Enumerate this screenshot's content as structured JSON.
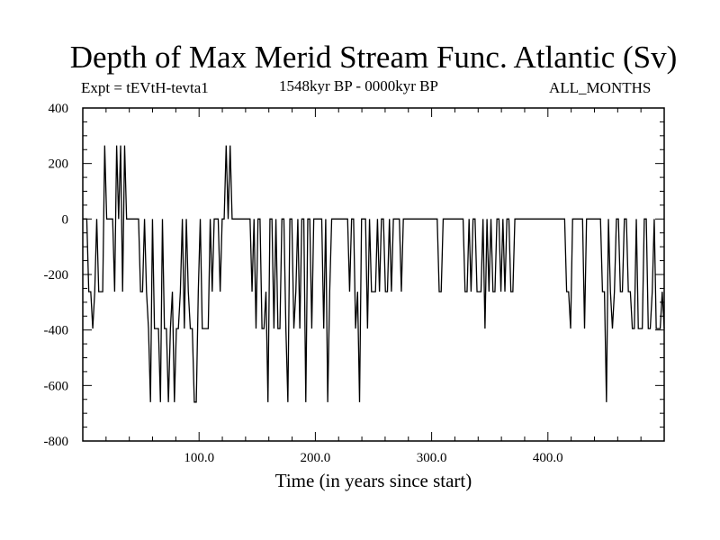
{
  "title": "Depth of Max Merid Stream Func. Atlantic (Sv)",
  "expt_label": "Expt = tEVtH-tevta1",
  "period_label": "1548kyr BP - 0000kyr BP",
  "months_label": "ALL_MONTHS",
  "chart_data": {
    "type": "line",
    "title": "Depth of Max Merid Stream Func. Atlantic (Sv)",
    "xlabel": "Time (in years since start)",
    "ylabel": "",
    "xlim": [
      0,
      500
    ],
    "ylim": [
      -800,
      400
    ],
    "yticks": [
      400,
      200,
      0,
      -200,
      -400,
      -600,
      -800
    ],
    "ytick_labels": [
      "400",
      "200",
      "0",
      "-200",
      "-400",
      "-600",
      "-800"
    ],
    "xticks": [
      100,
      200,
      300,
      400
    ],
    "xtick_labels": [
      "100.0",
      "200.0",
      "300.0",
      "400.0"
    ],
    "grid": false,
    "series": [
      {
        "values": [
          0,
          0,
          0,
          -262,
          -262,
          -395,
          -262,
          0,
          -262,
          -262,
          -262,
          265,
          0,
          0,
          0,
          0,
          -262,
          265,
          0,
          265,
          -262,
          265,
          0,
          0,
          0,
          0,
          0,
          0,
          0,
          -262,
          -262,
          0,
          -262,
          -395,
          -660,
          0,
          -395,
          -395,
          -395,
          -660,
          0,
          -395,
          -395,
          -660,
          -395,
          -262,
          -660,
          -395,
          -395,
          -262,
          0,
          -395,
          0,
          -262,
          -395,
          -395,
          -660,
          -660,
          -262,
          0,
          -395,
          -395,
          -395,
          -395,
          0,
          -262,
          0,
          0,
          0,
          -262,
          0,
          0,
          265,
          0,
          265,
          0,
          0,
          0,
          0,
          0,
          0,
          0,
          0,
          0,
          0,
          -262,
          0,
          -395,
          0,
          0,
          -395,
          -395,
          -262,
          -660,
          0,
          0,
          -395,
          0,
          -395,
          -395,
          0,
          0,
          -395,
          -660,
          0,
          0,
          -395,
          -262,
          0,
          -395,
          0,
          0,
          -660,
          0,
          0,
          -395,
          0,
          0,
          0,
          0,
          0,
          -395,
          0,
          -660,
          -262,
          0,
          0,
          0,
          0,
          0,
          0,
          0,
          0,
          0,
          -262,
          0,
          0,
          -395,
          -262,
          -660,
          0,
          0,
          0,
          -395,
          0,
          -262,
          -262,
          -262,
          0,
          -262,
          0,
          0,
          -262,
          -262,
          0,
          -262,
          0,
          0,
          0,
          0,
          -262,
          0,
          0,
          0,
          0,
          0,
          0,
          0,
          0,
          0,
          0,
          0,
          0,
          0,
          0,
          0,
          0,
          0,
          0,
          -262,
          -262,
          0,
          0,
          0,
          0,
          0,
          0,
          0,
          0,
          0,
          0,
          0,
          -262,
          -262,
          0,
          -262,
          0,
          0,
          -262,
          -262,
          -262,
          0,
          -395,
          0,
          -262,
          0,
          -262,
          -262,
          0,
          0,
          -262,
          0,
          -262,
          0,
          0,
          -262,
          -262,
          0,
          0,
          0,
          0,
          0,
          0,
          0,
          0,
          0,
          0,
          0,
          0,
          0,
          0,
          0,
          0,
          0,
          0,
          0,
          0,
          0,
          0,
          0,
          0,
          0,
          0,
          -262,
          -262,
          -395,
          0,
          0,
          0,
          0,
          0,
          0,
          -395,
          0,
          0,
          0,
          0,
          0,
          0,
          0,
          0,
          -262,
          -262,
          -660,
          0,
          -262,
          -395,
          -262,
          0,
          0,
          -262,
          -262,
          0,
          0,
          -262,
          -262,
          -395,
          -395,
          0,
          -395,
          -395,
          -395,
          0,
          0,
          -395,
          -395,
          -262,
          0,
          -395,
          -395,
          -395,
          -262,
          -395
        ]
      }
    ]
  }
}
